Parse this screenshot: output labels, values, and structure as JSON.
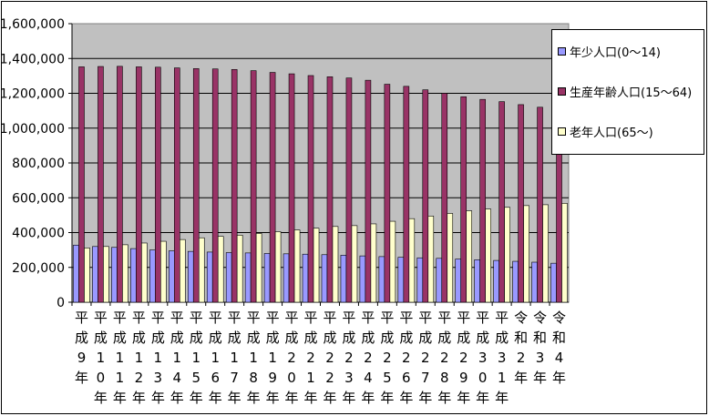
{
  "chart_data": {
    "type": "bar",
    "categories": [
      [
        "平",
        "成",
        "9",
        "年"
      ],
      [
        "平",
        "成",
        "1",
        "0",
        "年"
      ],
      [
        "平",
        "成",
        "1",
        "1",
        "年"
      ],
      [
        "平",
        "成",
        "1",
        "2",
        "年"
      ],
      [
        "平",
        "成",
        "1",
        "3",
        "年"
      ],
      [
        "平",
        "成",
        "1",
        "4",
        "年"
      ],
      [
        "平",
        "成",
        "1",
        "5",
        "年"
      ],
      [
        "平",
        "成",
        "1",
        "6",
        "年"
      ],
      [
        "平",
        "成",
        "1",
        "7",
        "年"
      ],
      [
        "平",
        "成",
        "1",
        "8",
        "年"
      ],
      [
        "平",
        "成",
        "1",
        "9",
        "年"
      ],
      [
        "平",
        "成",
        "2",
        "0",
        "年"
      ],
      [
        "平",
        "成",
        "2",
        "1",
        "年"
      ],
      [
        "平",
        "成",
        "2",
        "2",
        "年"
      ],
      [
        "平",
        "成",
        "2",
        "3",
        "年"
      ],
      [
        "平",
        "成",
        "2",
        "4",
        "年"
      ],
      [
        "平",
        "成",
        "2",
        "5",
        "年"
      ],
      [
        "平",
        "成",
        "2",
        "6",
        "年"
      ],
      [
        "平",
        "成",
        "2",
        "7",
        "年"
      ],
      [
        "平",
        "成",
        "2",
        "8",
        "年"
      ],
      [
        "平",
        "成",
        "2",
        "9",
        "年"
      ],
      [
        "平",
        "成",
        "3",
        "0",
        "年"
      ],
      [
        "平",
        "成",
        "3",
        "1",
        "年"
      ],
      [
        "令",
        "和",
        "2",
        "年"
      ],
      [
        "令",
        "和",
        "3",
        "年"
      ],
      [
        "令",
        "和",
        "4",
        "年"
      ]
    ],
    "series": [
      {
        "name": "年少人口(0～14)",
        "color": "#9999ff",
        "values": [
          328000,
          320000,
          315000,
          308000,
          300000,
          295000,
          292000,
          288000,
          285000,
          283000,
          280000,
          278000,
          276000,
          273000,
          270000,
          266000,
          262000,
          258000,
          255000,
          252000,
          248000,
          244000,
          240000,
          235000,
          230000,
          224000
        ]
      },
      {
        "name": "生産年齢人口(15～64)",
        "color": "#993366",
        "values": [
          1352000,
          1354000,
          1355000,
          1352000,
          1350000,
          1346000,
          1342000,
          1340000,
          1337000,
          1330000,
          1320000,
          1312000,
          1302000,
          1295000,
          1288000,
          1275000,
          1252000,
          1240000,
          1220000,
          1200000,
          1180000,
          1165000,
          1152000,
          1135000,
          1120000,
          1105000
        ]
      },
      {
        "name": "老年人口(65～)",
        "color": "#ffffcc",
        "values": [
          312000,
          320000,
          330000,
          340000,
          350000,
          360000,
          370000,
          378000,
          385000,
          395000,
          405000,
          415000,
          425000,
          435000,
          440000,
          450000,
          465000,
          480000,
          495000,
          510000,
          525000,
          535000,
          545000,
          555000,
          560000,
          568000
        ]
      }
    ],
    "ylim": [
      0,
      1600000
    ],
    "yticks": [
      0,
      200000,
      400000,
      600000,
      800000,
      1000000,
      1200000,
      1400000,
      1600000
    ],
    "ytick_labels": [
      "0",
      "200,000",
      "400,000",
      "600,000",
      "800,000",
      "1,000,000",
      "1,200,000",
      "1,400,000",
      "1,600,000"
    ],
    "plot_background": "#c0c0c0",
    "grid": true,
    "legend": "right"
  }
}
